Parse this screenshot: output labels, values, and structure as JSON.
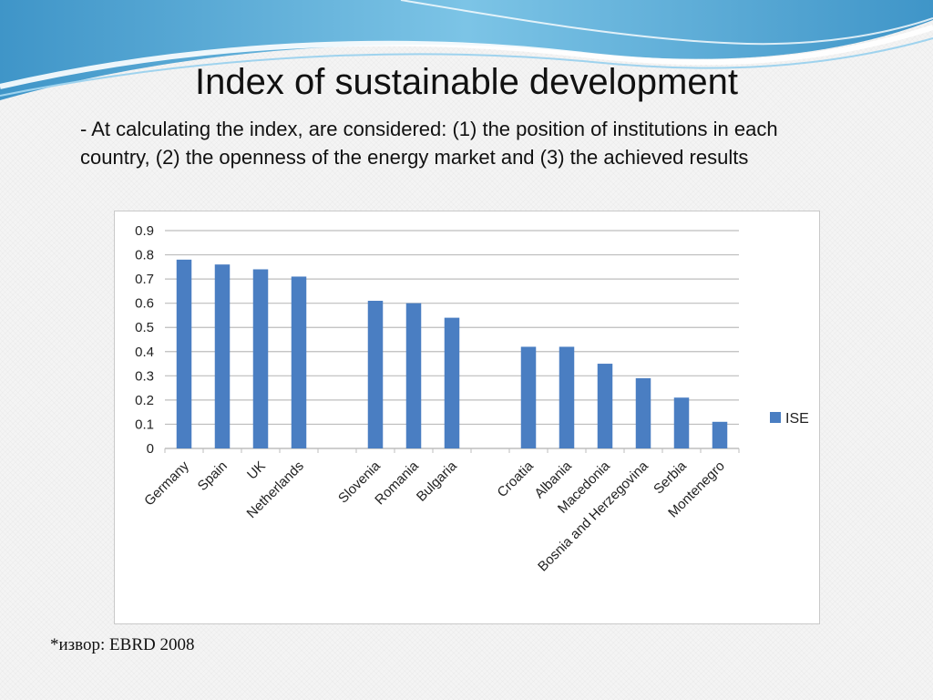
{
  "slide": {
    "title": "Index of sustainable development",
    "subtitle": "- At calculating the index, are considered: (1) the position of institutions in each country, (2) the openness of the energy market  and  (3) the achieved results",
    "source": "*извор: EBRD 2008"
  },
  "colors": {
    "bar": "#4a7ec2",
    "grid": "#bdbdbd",
    "wave_dark": "#5fa9d6",
    "wave_light": "#a9d7ee"
  },
  "chart_data": {
    "type": "bar",
    "categories": [
      "Germany",
      "Spain",
      "UK",
      "Netherlands",
      "",
      "Slovenia",
      "Romania",
      "Bulgaria",
      "",
      "Croatia",
      "Albania",
      "Macedonia",
      "Bosnia and Herzegovina",
      "Serbia",
      "Montenegro"
    ],
    "series": [
      {
        "name": "ISE",
        "values": [
          0.78,
          0.76,
          0.74,
          0.71,
          null,
          0.61,
          0.6,
          0.54,
          null,
          0.42,
          0.42,
          0.35,
          0.29,
          0.21,
          0.11
        ]
      }
    ],
    "yticks": [
      "0",
      "0.1",
      "0.2",
      "0.3",
      "0.4",
      "0.5",
      "0.6",
      "0.7",
      "0.8",
      "0.9"
    ],
    "ylim": [
      0,
      0.9
    ],
    "grid": true,
    "legend": "right",
    "title": "",
    "xlabel": "",
    "ylabel": ""
  }
}
